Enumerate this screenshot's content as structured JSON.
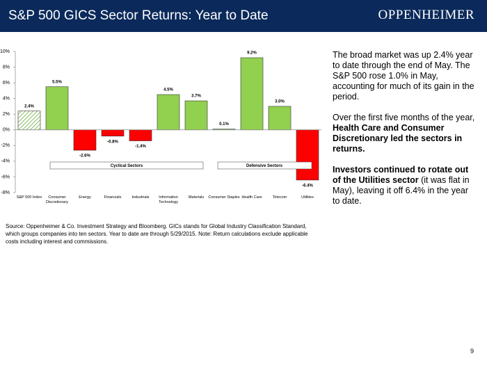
{
  "header": {
    "title": "S&P 500 GICS Sector Returns: Year to Date",
    "logo": "OPPENHEIMER"
  },
  "chart_data": {
    "type": "bar",
    "categories": [
      "S&P 500 Index",
      "Consumer Discretionary",
      "Energy",
      "Financials",
      "Industrials",
      "Information Technology",
      "Materials",
      "Consumer Staples",
      "Health Care",
      "Telecom",
      "Utilities"
    ],
    "values": [
      2.4,
      5.5,
      -2.6,
      -0.8,
      -1.4,
      4.5,
      3.7,
      0.1,
      9.2,
      3.0,
      -6.4
    ],
    "value_labels": [
      "2.4%",
      "5.5%",
      "-2.6%",
      "-0.8%",
      "-1.4%",
      "4.5%",
      "3.7%",
      "0.1%",
      "9.2%",
      "3.0%",
      "-6.4%"
    ],
    "positive_color": "#92d050",
    "negative_color": "#ff0000",
    "hatched": [
      true,
      false,
      false,
      false,
      false,
      false,
      false,
      false,
      false,
      false,
      false
    ],
    "ylim": [
      -8,
      10
    ],
    "yticks": [
      {
        "value": -8,
        "label": "-8%"
      },
      {
        "value": -6,
        "label": "-6%"
      },
      {
        "value": -4,
        "label": "-4%"
      },
      {
        "value": -2,
        "label": "-2%"
      },
      {
        "value": 0,
        "label": "0%"
      },
      {
        "value": 2,
        "label": "2%"
      },
      {
        "value": 4,
        "label": "4%"
      },
      {
        "value": 6,
        "label": "6%"
      },
      {
        "value": 8,
        "label": "8%"
      },
      {
        "value": 10,
        "label": "10%"
      }
    ],
    "grid": false,
    "annotations": [
      "Cyclical Sectors",
      "Defensive Sectors"
    ]
  },
  "commentary": [
    [
      {
        "text": "The broad market was up 2.4% year to date through the end of May. The S&P 500 rose 1.0% in May, accounting for much of its gain in the period.",
        "bold": false
      }
    ],
    [
      {
        "text": "Over the first five months of the year, ",
        "bold": false
      },
      {
        "text": "Health Care and Consumer Discretionary led the sectors in returns.",
        "bold": true
      }
    ],
    [
      {
        "text": "Investors continued to rotate out of the Utilities sector",
        "bold": true
      },
      {
        "text": " (it was flat in May), leaving it off 6.4% in the year to date.",
        "bold": false
      }
    ]
  ],
  "footnote": "Source: Oppenheimer & Co. Investment Strategy and Bloomberg.  GICs stands for Global Industry Classification Standard, which groups companies into ten sectors. Year to date are through 5/29/2015. Note: Return calculations exclude applicable costs including interest and commissions.",
  "page_number": 9
}
